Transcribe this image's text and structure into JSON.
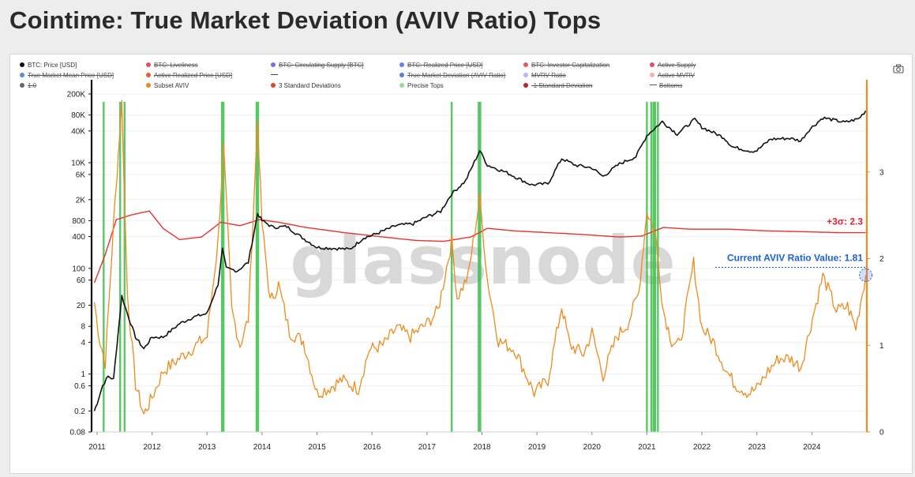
{
  "title": "Cointime: True Market Deviation (AVIV Ratio) Tops",
  "legend": [
    {
      "label": "BTC: Price [USD]",
      "color": "#111111",
      "active": true,
      "shape": "dot"
    },
    {
      "label": "BTC: Liveliness",
      "color": "#e0506a",
      "active": false,
      "shape": "dot"
    },
    {
      "label": "BTC: Circulating Supply [BTC]",
      "color": "#7b6fe0",
      "active": false,
      "shape": "dot"
    },
    {
      "label": "BTC: Realized Price [USD]",
      "color": "#6a7ee8",
      "active": false,
      "shape": "dot"
    },
    {
      "label": "BTC: Investor Capitalization",
      "color": "#e05a6a",
      "active": false,
      "shape": "dot"
    },
    {
      "label": "Active Supply",
      "color": "#e0506a",
      "active": false,
      "shape": "dot"
    },
    {
      "label": "True Market Mean Price [USD]",
      "color": "#5a8be0",
      "active": false,
      "shape": "dot"
    },
    {
      "label": "Active Realized Price [USD]",
      "color": "#e8603a",
      "active": false,
      "shape": "dot"
    },
    {
      "label": "",
      "color": "#444444",
      "active": true,
      "shape": "line"
    },
    {
      "label": "True Market Deviation (AVIV Ratio)",
      "color": "#5a7de0",
      "active": false,
      "shape": "dot"
    },
    {
      "label": "MVRV Ratio",
      "color": "#b9b3f0",
      "active": false,
      "shape": "dot"
    },
    {
      "label": "Active MVRV",
      "color": "#f2b0b8",
      "active": false,
      "shape": "dot"
    },
    {
      "label": "1.0",
      "color": "#666666",
      "active": false,
      "shape": "dot"
    },
    {
      "label": "Subset AVIV",
      "color": "#f08a1c",
      "active": true,
      "shape": "dot"
    },
    {
      "label": "3 Standard Deviations",
      "color": "#e8402a",
      "active": true,
      "shape": "dot"
    },
    {
      "label": "Precise Tops",
      "color": "#9ad99a",
      "active": true,
      "shape": "dot"
    },
    {
      "label": "-1 Standard Deviation",
      "color": "#c81e1e",
      "active": false,
      "shape": "dot"
    },
    {
      "label": "Bottoms",
      "color": "#555555",
      "active": false,
      "shape": "line"
    }
  ],
  "annotations": {
    "sigma_label": "+3σ: 2.3",
    "current_label": "Current AVIV Ratio Value: 1.81"
  },
  "watermark": "glassnode",
  "colors": {
    "price": "#111111",
    "aviv": "#f08a1c",
    "sigma3": "#e63232",
    "tops": "#3cc04c",
    "current": "#1f5fd6",
    "sigma_text": "#e0233c"
  },
  "chart_data": {
    "type": "line",
    "x_ticks": [
      "2011",
      "2012",
      "2013",
      "2014",
      "2015",
      "2016",
      "2017",
      "2018",
      "2019",
      "2020",
      "2021",
      "2022",
      "2023",
      "2024"
    ],
    "y_left_ticks": [
      "200K",
      "80K",
      "40K",
      "10K",
      "6K",
      "2K",
      "800",
      "400",
      "100",
      "60",
      "20",
      "8",
      "4",
      "1",
      "0.6",
      "0.2",
      "0.08"
    ],
    "y_left_values": [
      200000,
      80000,
      40000,
      10000,
      6000,
      2000,
      800,
      400,
      100,
      60,
      20,
      8,
      4,
      1,
      0.6,
      0.2,
      0.08
    ],
    "y_left_scale": "log",
    "y_left_range": [
      0.08,
      200000
    ],
    "y_right_ticks": [
      "3",
      "2",
      "1",
      "0"
    ],
    "y_right_values": [
      3,
      2,
      1,
      0
    ],
    "y_right_range": [
      0,
      3.9
    ],
    "x_range": [
      2010.9,
      2025.0
    ],
    "series": [
      {
        "name": "BTC: Price [USD]",
        "axis": "left",
        "points": [
          [
            2010.95,
            0.2
          ],
          [
            2011.0,
            0.28
          ],
          [
            2011.1,
            0.6
          ],
          [
            2011.2,
            0.9
          ],
          [
            2011.3,
            0.8
          ],
          [
            2011.45,
            30
          ],
          [
            2011.55,
            14
          ],
          [
            2011.7,
            5
          ],
          [
            2011.85,
            3
          ],
          [
            2012.0,
            5
          ],
          [
            2012.2,
            5
          ],
          [
            2012.5,
            9
          ],
          [
            2012.75,
            12
          ],
          [
            2013.0,
            14
          ],
          [
            2013.2,
            50
          ],
          [
            2013.28,
            230
          ],
          [
            2013.35,
            100
          ],
          [
            2013.55,
            90
          ],
          [
            2013.75,
            130
          ],
          [
            2013.92,
            1100
          ],
          [
            2014.0,
            800
          ],
          [
            2014.2,
            600
          ],
          [
            2014.45,
            620
          ],
          [
            2014.7,
            400
          ],
          [
            2015.0,
            250
          ],
          [
            2015.3,
            240
          ],
          [
            2015.6,
            230
          ],
          [
            2015.85,
            380
          ],
          [
            2016.0,
            420
          ],
          [
            2016.45,
            650
          ],
          [
            2016.75,
            700
          ],
          [
            2017.0,
            950
          ],
          [
            2017.25,
            1200
          ],
          [
            2017.45,
            2600
          ],
          [
            2017.7,
            4500
          ],
          [
            2017.96,
            17000
          ],
          [
            2018.1,
            9000
          ],
          [
            2018.45,
            6500
          ],
          [
            2018.9,
            3800
          ],
          [
            2019.2,
            4000
          ],
          [
            2019.45,
            12000
          ],
          [
            2019.7,
            9000
          ],
          [
            2020.0,
            8000
          ],
          [
            2020.2,
            5500
          ],
          [
            2020.5,
            9500
          ],
          [
            2020.8,
            13000
          ],
          [
            2021.0,
            33000
          ],
          [
            2021.28,
            60000
          ],
          [
            2021.55,
            35000
          ],
          [
            2021.87,
            66000
          ],
          [
            2022.0,
            47000
          ],
          [
            2022.4,
            30000
          ],
          [
            2022.55,
            20000
          ],
          [
            2022.9,
            16500
          ],
          [
            2023.0,
            17000
          ],
          [
            2023.25,
            28000
          ],
          [
            2023.6,
            29000
          ],
          [
            2023.8,
            26000
          ],
          [
            2023.95,
            42000
          ],
          [
            2024.2,
            71000
          ],
          [
            2024.6,
            58000
          ],
          [
            2024.85,
            68000
          ],
          [
            2024.98,
            96000
          ]
        ]
      },
      {
        "name": "Subset AVIV",
        "axis": "right",
        "points": [
          [
            2010.95,
            1.5
          ],
          [
            2011.05,
            1.05
          ],
          [
            2011.15,
            0.8
          ],
          [
            2011.3,
            2.4
          ],
          [
            2011.45,
            3.8
          ],
          [
            2011.55,
            1.6
          ],
          [
            2011.7,
            0.55
          ],
          [
            2011.85,
            0.2
          ],
          [
            2012.0,
            0.4
          ],
          [
            2012.2,
            0.7
          ],
          [
            2012.5,
            0.85
          ],
          [
            2012.8,
            1.0
          ],
          [
            2013.0,
            1.1
          ],
          [
            2013.2,
            2.2
          ],
          [
            2013.3,
            3.3
          ],
          [
            2013.45,
            1.4
          ],
          [
            2013.6,
            1.0
          ],
          [
            2013.75,
            1.3
          ],
          [
            2013.92,
            3.6
          ],
          [
            2014.0,
            2.4
          ],
          [
            2014.15,
            1.5
          ],
          [
            2014.3,
            1.7
          ],
          [
            2014.5,
            1.15
          ],
          [
            2014.75,
            1.05
          ],
          [
            2015.0,
            0.45
          ],
          [
            2015.2,
            0.5
          ],
          [
            2015.45,
            0.6
          ],
          [
            2015.75,
            0.5
          ],
          [
            2015.95,
            0.95
          ],
          [
            2016.2,
            1.0
          ],
          [
            2016.45,
            1.2
          ],
          [
            2016.7,
            1.1
          ],
          [
            2017.0,
            1.25
          ],
          [
            2017.2,
            1.4
          ],
          [
            2017.45,
            2.2
          ],
          [
            2017.55,
            1.55
          ],
          [
            2017.75,
            1.8
          ],
          [
            2017.96,
            2.7
          ],
          [
            2018.1,
            1.75
          ],
          [
            2018.3,
            1.05
          ],
          [
            2018.6,
            0.95
          ],
          [
            2018.95,
            0.45
          ],
          [
            2019.2,
            0.6
          ],
          [
            2019.45,
            1.45
          ],
          [
            2019.6,
            1.0
          ],
          [
            2019.85,
            0.9
          ],
          [
            2020.0,
            1.15
          ],
          [
            2020.2,
            0.65
          ],
          [
            2020.45,
            1.1
          ],
          [
            2020.65,
            1.25
          ],
          [
            2020.85,
            1.6
          ],
          [
            2021.0,
            2.55
          ],
          [
            2021.15,
            2.3
          ],
          [
            2021.3,
            1.4
          ],
          [
            2021.45,
            1.05
          ],
          [
            2021.6,
            1.0
          ],
          [
            2021.85,
            1.95
          ],
          [
            2022.0,
            1.2
          ],
          [
            2022.2,
            1.05
          ],
          [
            2022.45,
            0.7
          ],
          [
            2022.6,
            0.55
          ],
          [
            2022.85,
            0.45
          ],
          [
            2023.0,
            0.5
          ],
          [
            2023.2,
            0.7
          ],
          [
            2023.4,
            0.85
          ],
          [
            2023.6,
            0.85
          ],
          [
            2023.8,
            0.75
          ],
          [
            2023.95,
            1.15
          ],
          [
            2024.2,
            1.8
          ],
          [
            2024.45,
            1.4
          ],
          [
            2024.65,
            1.45
          ],
          [
            2024.8,
            1.2
          ],
          [
            2024.98,
            1.81
          ]
        ]
      },
      {
        "name": "3 Standard Deviations",
        "axis": "right",
        "points": [
          [
            2010.95,
            1.72
          ],
          [
            2011.15,
            2.05
          ],
          [
            2011.35,
            2.45
          ],
          [
            2011.6,
            2.5
          ],
          [
            2011.95,
            2.55
          ],
          [
            2012.2,
            2.35
          ],
          [
            2012.5,
            2.22
          ],
          [
            2012.9,
            2.25
          ],
          [
            2013.25,
            2.42
          ],
          [
            2013.6,
            2.38
          ],
          [
            2013.95,
            2.45
          ],
          [
            2014.3,
            2.42
          ],
          [
            2014.8,
            2.36
          ],
          [
            2015.5,
            2.3
          ],
          [
            2016.2,
            2.25
          ],
          [
            2016.8,
            2.21
          ],
          [
            2017.3,
            2.2
          ],
          [
            2017.8,
            2.25
          ],
          [
            2018.1,
            2.35
          ],
          [
            2018.6,
            2.32
          ],
          [
            2019.2,
            2.3
          ],
          [
            2019.8,
            2.28
          ],
          [
            2020.5,
            2.25
          ],
          [
            2020.9,
            2.26
          ],
          [
            2021.3,
            2.36
          ],
          [
            2021.8,
            2.34
          ],
          [
            2022.5,
            2.34
          ],
          [
            2023.2,
            2.32
          ],
          [
            2023.9,
            2.31
          ],
          [
            2024.5,
            2.3
          ],
          [
            2024.98,
            2.3
          ]
        ]
      }
    ],
    "precise_tops": [
      2011.12,
      2011.42,
      2011.5,
      2013.27,
      2013.3,
      2013.9,
      2013.93,
      2017.45,
      2017.94,
      2017.97,
      2021.0,
      2021.08,
      2021.12,
      2021.15,
      2021.2
    ],
    "current_value": 1.81,
    "sigma3_value": 2.3
  }
}
